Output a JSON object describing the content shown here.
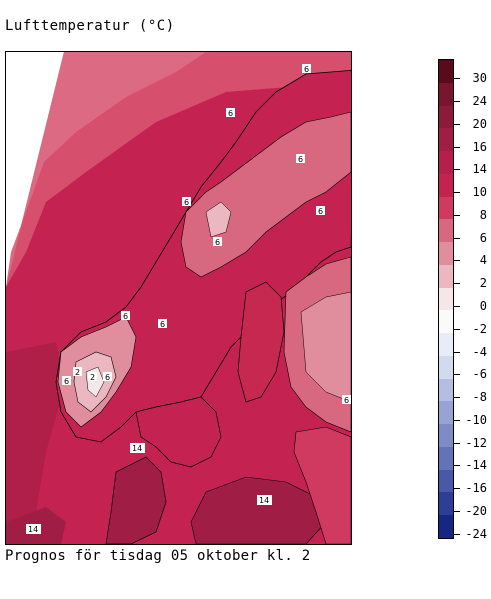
{
  "title": "Lufttemperatur (°C)",
  "caption": "Prognos för tisdag 05 oktober kl. 2",
  "legend": {
    "labels": [
      "30",
      "24",
      "20",
      "16",
      "14",
      "10",
      "8",
      "6",
      "4",
      "2",
      "0",
      "-2",
      "-4",
      "-6",
      "-8",
      "-10",
      "-12",
      "-14",
      "-16",
      "-20",
      "-24"
    ],
    "colors": [
      "#5a0a1c",
      "#7a1530",
      "#8c1a3a",
      "#a01e45",
      "#b41f4c",
      "#c42352",
      "#d03a60",
      "#d8687f",
      "#e08e9d",
      "#ebb8c1",
      "#f5e6ea",
      "#fafafa",
      "#e8ecf7",
      "#d3d9ef",
      "#b5bee2",
      "#98a3d3",
      "#7f8bc6",
      "#6472b7",
      "#4958a7",
      "#2e3d95",
      "#152683"
    ]
  },
  "isotherm_labels": [
    "6",
    "6",
    "6",
    "6",
    "6",
    "6",
    "6",
    "2",
    "6",
    "6",
    "14",
    "14",
    "14",
    "6",
    "6",
    "2"
  ],
  "map": {
    "sea_fill": "#c62850",
    "north_sea_fill": "#b82248",
    "land_fill": "#c42352"
  }
}
